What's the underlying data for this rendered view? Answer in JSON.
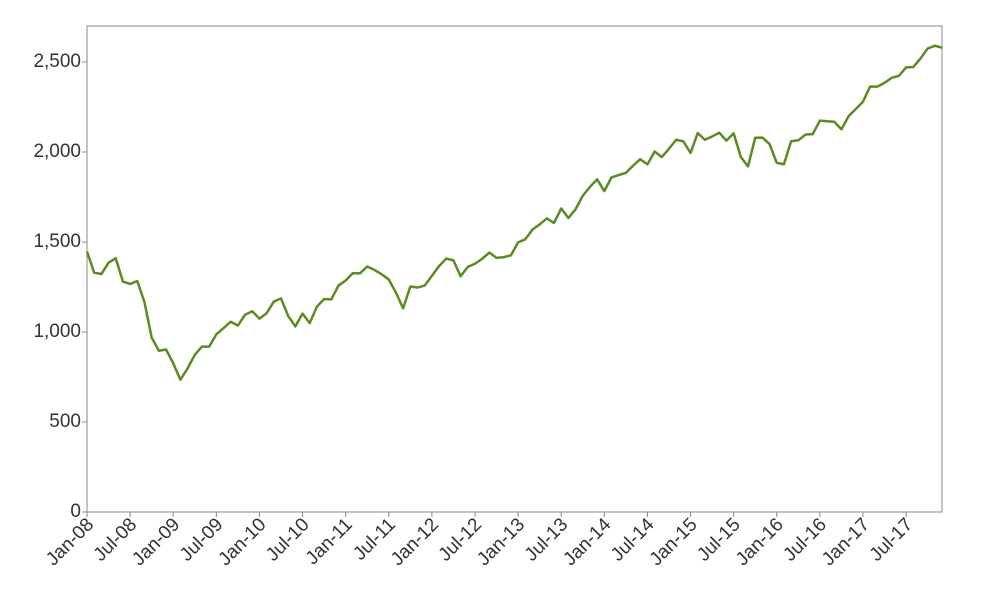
{
  "chart_data": {
    "type": "line",
    "x": [
      "2008-01",
      "2008-02",
      "2008-03",
      "2008-04",
      "2008-05",
      "2008-06",
      "2008-07",
      "2008-08",
      "2008-09",
      "2008-10",
      "2008-11",
      "2008-12",
      "2009-01",
      "2009-02",
      "2009-03",
      "2009-04",
      "2009-05",
      "2009-06",
      "2009-07",
      "2009-08",
      "2009-09",
      "2009-10",
      "2009-11",
      "2009-12",
      "2010-01",
      "2010-02",
      "2010-03",
      "2010-04",
      "2010-05",
      "2010-06",
      "2010-07",
      "2010-08",
      "2010-09",
      "2010-10",
      "2010-11",
      "2010-12",
      "2011-01",
      "2011-02",
      "2011-03",
      "2011-04",
      "2011-05",
      "2011-06",
      "2011-07",
      "2011-08",
      "2011-09",
      "2011-10",
      "2011-11",
      "2011-12",
      "2012-01",
      "2012-02",
      "2012-03",
      "2012-04",
      "2012-05",
      "2012-06",
      "2012-07",
      "2012-08",
      "2012-09",
      "2012-10",
      "2012-11",
      "2012-12",
      "2013-01",
      "2013-02",
      "2013-03",
      "2013-04",
      "2013-05",
      "2013-06",
      "2013-07",
      "2013-08",
      "2013-09",
      "2013-10",
      "2013-11",
      "2013-12",
      "2014-01",
      "2014-02",
      "2014-03",
      "2014-04",
      "2014-05",
      "2014-06",
      "2014-07",
      "2014-08",
      "2014-09",
      "2014-10",
      "2014-11",
      "2014-12",
      "2015-01",
      "2015-02",
      "2015-03",
      "2015-04",
      "2015-05",
      "2015-06",
      "2015-07",
      "2015-08",
      "2015-09",
      "2015-10",
      "2015-11",
      "2015-12",
      "2016-01",
      "2016-02",
      "2016-03",
      "2016-04",
      "2016-05",
      "2016-06",
      "2016-07",
      "2016-08",
      "2016-09",
      "2016-10",
      "2016-11",
      "2016-12",
      "2017-01",
      "2017-02",
      "2017-03",
      "2017-04",
      "2017-05",
      "2017-06",
      "2017-07",
      "2017-08",
      "2017-09",
      "2017-10",
      "2017-11",
      "2017-12"
    ],
    "series": [
      {
        "color": "#5b8c23",
        "values": [
          1447,
          1330,
          1322,
          1385,
          1410,
          1280,
          1267,
          1283,
          1166,
          969,
          896,
          903,
          826,
          735,
          798,
          873,
          919,
          919,
          987,
          1021,
          1057,
          1036,
          1096,
          1115,
          1074,
          1104,
          1169,
          1187,
          1089,
          1031,
          1102,
          1049,
          1141,
          1183,
          1181,
          1258,
          1286,
          1327,
          1326,
          1364,
          1345,
          1321,
          1292,
          1219,
          1131,
          1253,
          1247,
          1258,
          1312,
          1366,
          1408,
          1398,
          1310,
          1362,
          1379,
          1407,
          1441,
          1412,
          1416,
          1426,
          1498,
          1515,
          1569,
          1598,
          1631,
          1606,
          1686,
          1633,
          1682,
          1757,
          1806,
          1848,
          1783,
          1859,
          1872,
          1884,
          1924,
          1960,
          1931,
          2003,
          1972,
          2018,
          2068,
          2059,
          1995,
          2105,
          2068,
          2086,
          2107,
          2063,
          2104,
          1972,
          1920,
          2079,
          2080,
          2044,
          1940,
          1932,
          2060,
          2065,
          2097,
          2099,
          2174,
          2171,
          2168,
          2126,
          2199,
          2239,
          2279,
          2364,
          2363,
          2384,
          2412,
          2423,
          2470,
          2472,
          2519,
          2575,
          2590,
          2580
        ]
      }
    ],
    "xlim": [
      "2008-01",
      "2017-12"
    ],
    "xticks": [
      {
        "value": "2008-01",
        "label": "Jan-08"
      },
      {
        "value": "2008-07",
        "label": "Jul-08"
      },
      {
        "value": "2009-01",
        "label": "Jan-09"
      },
      {
        "value": "2009-07",
        "label": "Jul-09"
      },
      {
        "value": "2010-01",
        "label": "Jan-10"
      },
      {
        "value": "2010-07",
        "label": "Jul-10"
      },
      {
        "value": "2011-01",
        "label": "Jan-11"
      },
      {
        "value": "2011-07",
        "label": "Jul-11"
      },
      {
        "value": "2012-01",
        "label": "Jan-12"
      },
      {
        "value": "2012-07",
        "label": "Jul-12"
      },
      {
        "value": "2013-01",
        "label": "Jan-13"
      },
      {
        "value": "2013-07",
        "label": "Jul-13"
      },
      {
        "value": "2014-01",
        "label": "Jan-14"
      },
      {
        "value": "2014-07",
        "label": "Jul-14"
      },
      {
        "value": "2015-01",
        "label": "Jan-15"
      },
      {
        "value": "2015-07",
        "label": "Jul-15"
      },
      {
        "value": "2016-01",
        "label": "Jan-16"
      },
      {
        "value": "2016-07",
        "label": "Jul-16"
      },
      {
        "value": "2017-01",
        "label": "Jan-17"
      },
      {
        "value": "2017-07",
        "label": "Jul-17"
      }
    ],
    "ylim": [
      0,
      2700
    ],
    "yticks": [
      0,
      500,
      {
        "value": 1000,
        "label": "1,000"
      },
      {
        "value": 1500,
        "label": "1,500"
      },
      {
        "value": 2000,
        "label": "2,000"
      },
      {
        "value": 2500,
        "label": "2,500"
      }
    ],
    "grid": false
  }
}
